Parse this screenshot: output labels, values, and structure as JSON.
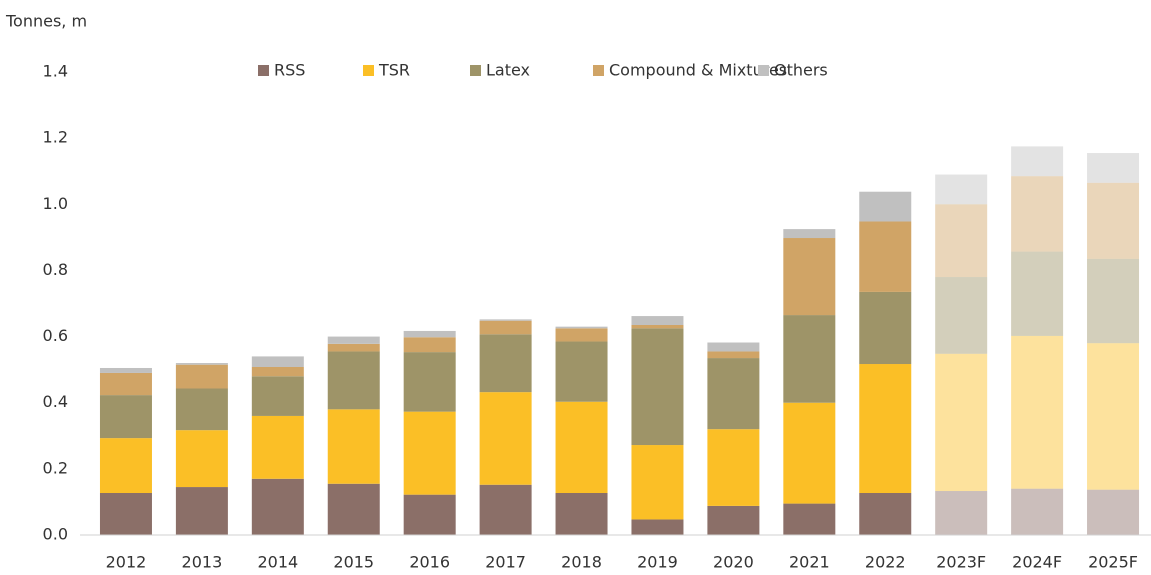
{
  "chart_data": {
    "type": "stacked_bar",
    "y_axis_label": "Tonnes, m",
    "categories": [
      "2012",
      "2013",
      "2014",
      "2015",
      "2016",
      "2017",
      "2018",
      "2019",
      "2020",
      "2021",
      "2022",
      "2023F",
      "2024F",
      "2025F"
    ],
    "forecast": [
      false,
      false,
      false,
      false,
      false,
      false,
      false,
      false,
      false,
      false,
      false,
      true,
      true,
      true
    ],
    "forecast_opacity": 0.45,
    "series": [
      {
        "name": "RSS",
        "color": "#8b6f68",
        "values": [
          0.127,
          0.145,
          0.17,
          0.155,
          0.122,
          0.152,
          0.127,
          0.047,
          0.088,
          0.095,
          0.127,
          0.133,
          0.14,
          0.137
        ]
      },
      {
        "name": "TSR",
        "color": "#fbbf26",
        "values": [
          0.166,
          0.172,
          0.19,
          0.225,
          0.251,
          0.28,
          0.276,
          0.225,
          0.232,
          0.305,
          0.39,
          0.415,
          0.462,
          0.443
        ]
      },
      {
        "name": "Latex",
        "color": "#9e9468",
        "values": [
          0.13,
          0.126,
          0.12,
          0.175,
          0.18,
          0.175,
          0.182,
          0.353,
          0.215,
          0.265,
          0.218,
          0.232,
          0.255,
          0.255
        ]
      },
      {
        "name": "Compound & Mixtures",
        "color": "#d0a466",
        "values": [
          0.067,
          0.072,
          0.028,
          0.023,
          0.045,
          0.041,
          0.04,
          0.01,
          0.02,
          0.233,
          0.213,
          0.22,
          0.228,
          0.23
        ]
      },
      {
        "name": "Others",
        "color": "#c0c0c0",
        "values": [
          0.015,
          0.005,
          0.032,
          0.022,
          0.019,
          0.004,
          0.005,
          0.027,
          0.027,
          0.027,
          0.09,
          0.09,
          0.09,
          0.09
        ]
      }
    ],
    "ylim": [
      0,
      1.4
    ],
    "yticks": [
      {
        "value": 0,
        "label": "0.0"
      },
      0.2,
      0.4,
      0.6,
      0.8,
      {
        "value": 1,
        "label": "1.0"
      },
      1.2,
      1.4
    ],
    "legend": "top"
  }
}
